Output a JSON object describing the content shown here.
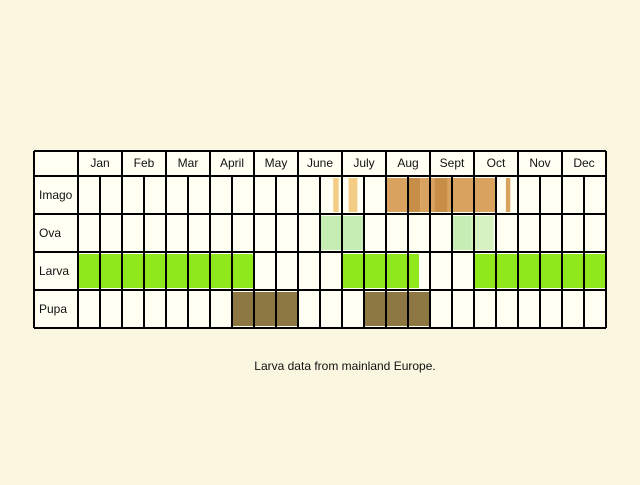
{
  "chart_data": {
    "type": "table",
    "months": [
      "Jan",
      "Feb",
      "Mar",
      "April",
      "May",
      "June",
      "July",
      "Aug",
      "Sept",
      "Oct",
      "Nov",
      "Dec"
    ],
    "stages": [
      {
        "name": "Imago",
        "spans": [
          {
            "start": 11.6,
            "end": 11.85,
            "color": "#F3CC86"
          },
          {
            "start": 12.3,
            "end": 12.7,
            "color": "#F3CC86"
          },
          {
            "start": 14.0,
            "end": 14.95,
            "color": "#D9A25E"
          },
          {
            "start": 14.95,
            "end": 15.55,
            "color": "#C88E48"
          },
          {
            "start": 15.55,
            "end": 16.2,
            "color": "#D9A25E"
          },
          {
            "start": 16.2,
            "end": 16.8,
            "color": "#C88E48"
          },
          {
            "start": 16.8,
            "end": 19.0,
            "color": "#D9A25E"
          },
          {
            "start": 19.45,
            "end": 19.65,
            "color": "#D9A25E"
          }
        ]
      },
      {
        "name": "Ova",
        "spans": [
          {
            "start": 11.0,
            "end": 13.0,
            "color": "#C5EDB4"
          },
          {
            "start": 17.0,
            "end": 17.9,
            "color": "#C5EDB4"
          },
          {
            "start": 17.9,
            "end": 18.9,
            "color": "#D6F2C2"
          }
        ]
      },
      {
        "name": "Larva",
        "spans": [
          {
            "start": 0.0,
            "end": 8.0,
            "color": "#8EE81C"
          },
          {
            "start": 12.0,
            "end": 15.5,
            "color": "#8EE81C"
          },
          {
            "start": 18.0,
            "end": 24.0,
            "color": "#8EE81C"
          }
        ]
      },
      {
        "name": "Pupa",
        "spans": [
          {
            "start": 7.0,
            "end": 10.0,
            "color": "#8D7743"
          },
          {
            "start": 13.0,
            "end": 16.0,
            "color": "#8D7743"
          }
        ]
      }
    ],
    "caption": "Larva data from mainland Europe."
  }
}
